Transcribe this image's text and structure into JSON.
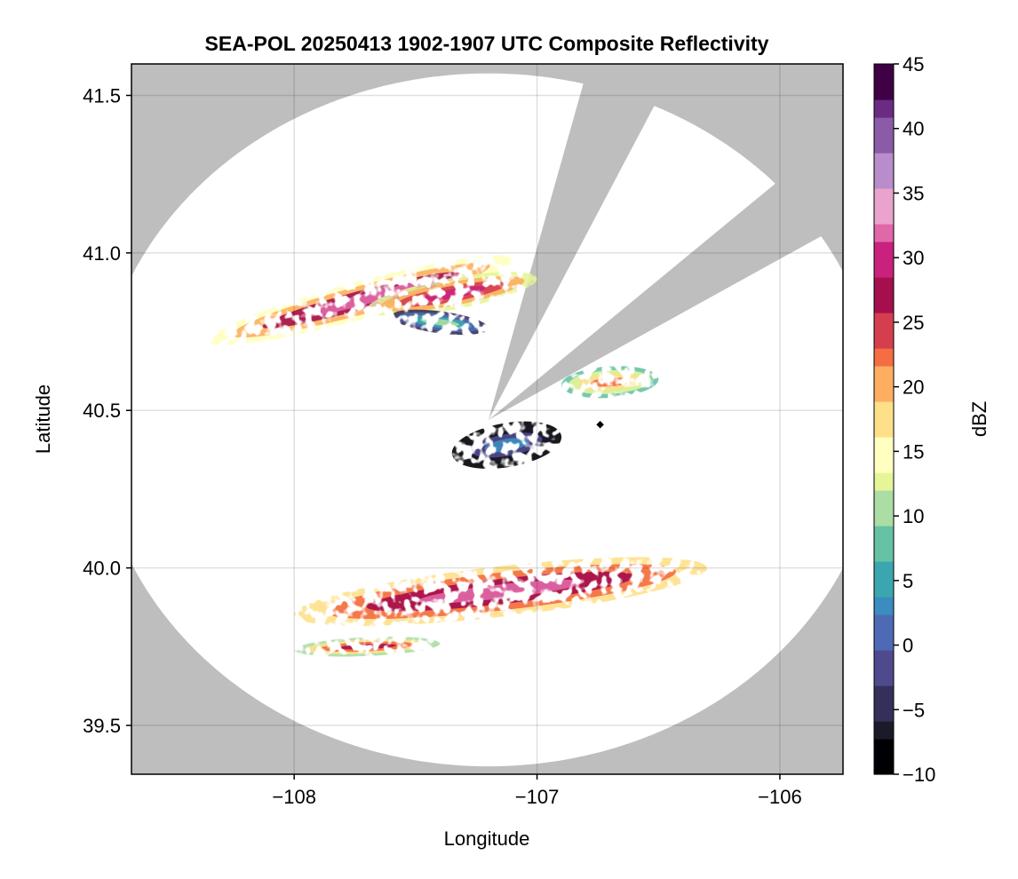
{
  "chart_data": {
    "type": "heatmap",
    "title": "SEA-POL 20250413 1902-1907 UTC Composite Reflectivity",
    "xlabel": "Longitude",
    "ylabel": "Latitude",
    "xlim": [
      -108.67,
      -105.74
    ],
    "ylim": [
      39.345,
      41.6
    ],
    "x_ticks": [
      -108,
      -107,
      -106
    ],
    "y_ticks": [
      39.5,
      40.0,
      40.5,
      41.0,
      41.5
    ],
    "x_tick_labels": [
      "−108",
      "−107",
      "−106"
    ],
    "y_tick_labels": [
      "39.5",
      "40.0",
      "40.5",
      "41.0",
      "41.5"
    ],
    "grid": true,
    "background_color": "#bebebe",
    "radar": {
      "center": [
        -107.2,
        40.47
      ],
      "range_lon": 1.615,
      "range_lat": 1.1,
      "blocked_sectors_deg": [
        [
          14,
          25
        ],
        [
          47,
          58
        ]
      ],
      "marker": [
        -106.74,
        40.455
      ]
    },
    "colorbar": {
      "label": "dBZ",
      "min": -10,
      "max": 45,
      "step": 1.375,
      "ticks": [
        -10,
        -5,
        0,
        5,
        10,
        15,
        20,
        25,
        30,
        35,
        40,
        45
      ],
      "tick_labels": [
        "−10",
        "−5",
        "0",
        "5",
        "10",
        "15",
        "20",
        "25",
        "30",
        "35",
        "40",
        "45"
      ],
      "colormap": [
        "#000004",
        "#1b1a29",
        "#35305a",
        "#4f4a8e",
        "#4f6ab5",
        "#3b8cbf",
        "#3aa7b0",
        "#66c2a5",
        "#abdda4",
        "#e6f598",
        "#ffffbf",
        "#fee08b",
        "#fdae61",
        "#f46d43",
        "#d53e4f",
        "#a50f4d",
        "#c9217d",
        "#e067a8",
        "#e9a3cc",
        "#b98dcb",
        "#8c5ba8",
        "#6a2b83",
        "#3f0045"
      ]
    },
    "echoes": [
      {
        "name": "northern-band",
        "lon": [
          -107.1,
          -108.35
        ],
        "lat": [
          40.98,
          40.72
        ],
        "width": 0.06,
        "peak_dbz": 31
      },
      {
        "name": "northern-band-inner",
        "lon": [
          -107.0,
          -107.7
        ],
        "lat": [
          40.92,
          40.82
        ],
        "width": 0.05,
        "peak_dbz": 29
      },
      {
        "name": "northern-light-core",
        "lon": [
          -107.6,
          -107.2
        ],
        "lat": [
          40.8,
          40.76
        ],
        "width": 0.035,
        "peak_dbz": 11
      },
      {
        "name": "central-cluster",
        "lon": [
          -107.35,
          -106.9
        ],
        "lat": [
          40.36,
          40.42
        ],
        "width": 0.07,
        "peak_dbz": 4
      },
      {
        "name": "east-cluster",
        "lon": [
          -106.9,
          -106.5
        ],
        "lat": [
          40.58,
          40.6
        ],
        "width": 0.05,
        "peak_dbz": 23
      },
      {
        "name": "southern-band",
        "lon": [
          -108.0,
          -106.3
        ],
        "lat": [
          39.85,
          40.0
        ],
        "width": 0.08,
        "peak_dbz": 33
      },
      {
        "name": "southwest-cells",
        "lon": [
          -108.0,
          -107.4
        ],
        "lat": [
          39.74,
          39.76
        ],
        "width": 0.03,
        "peak_dbz": 27
      }
    ]
  }
}
